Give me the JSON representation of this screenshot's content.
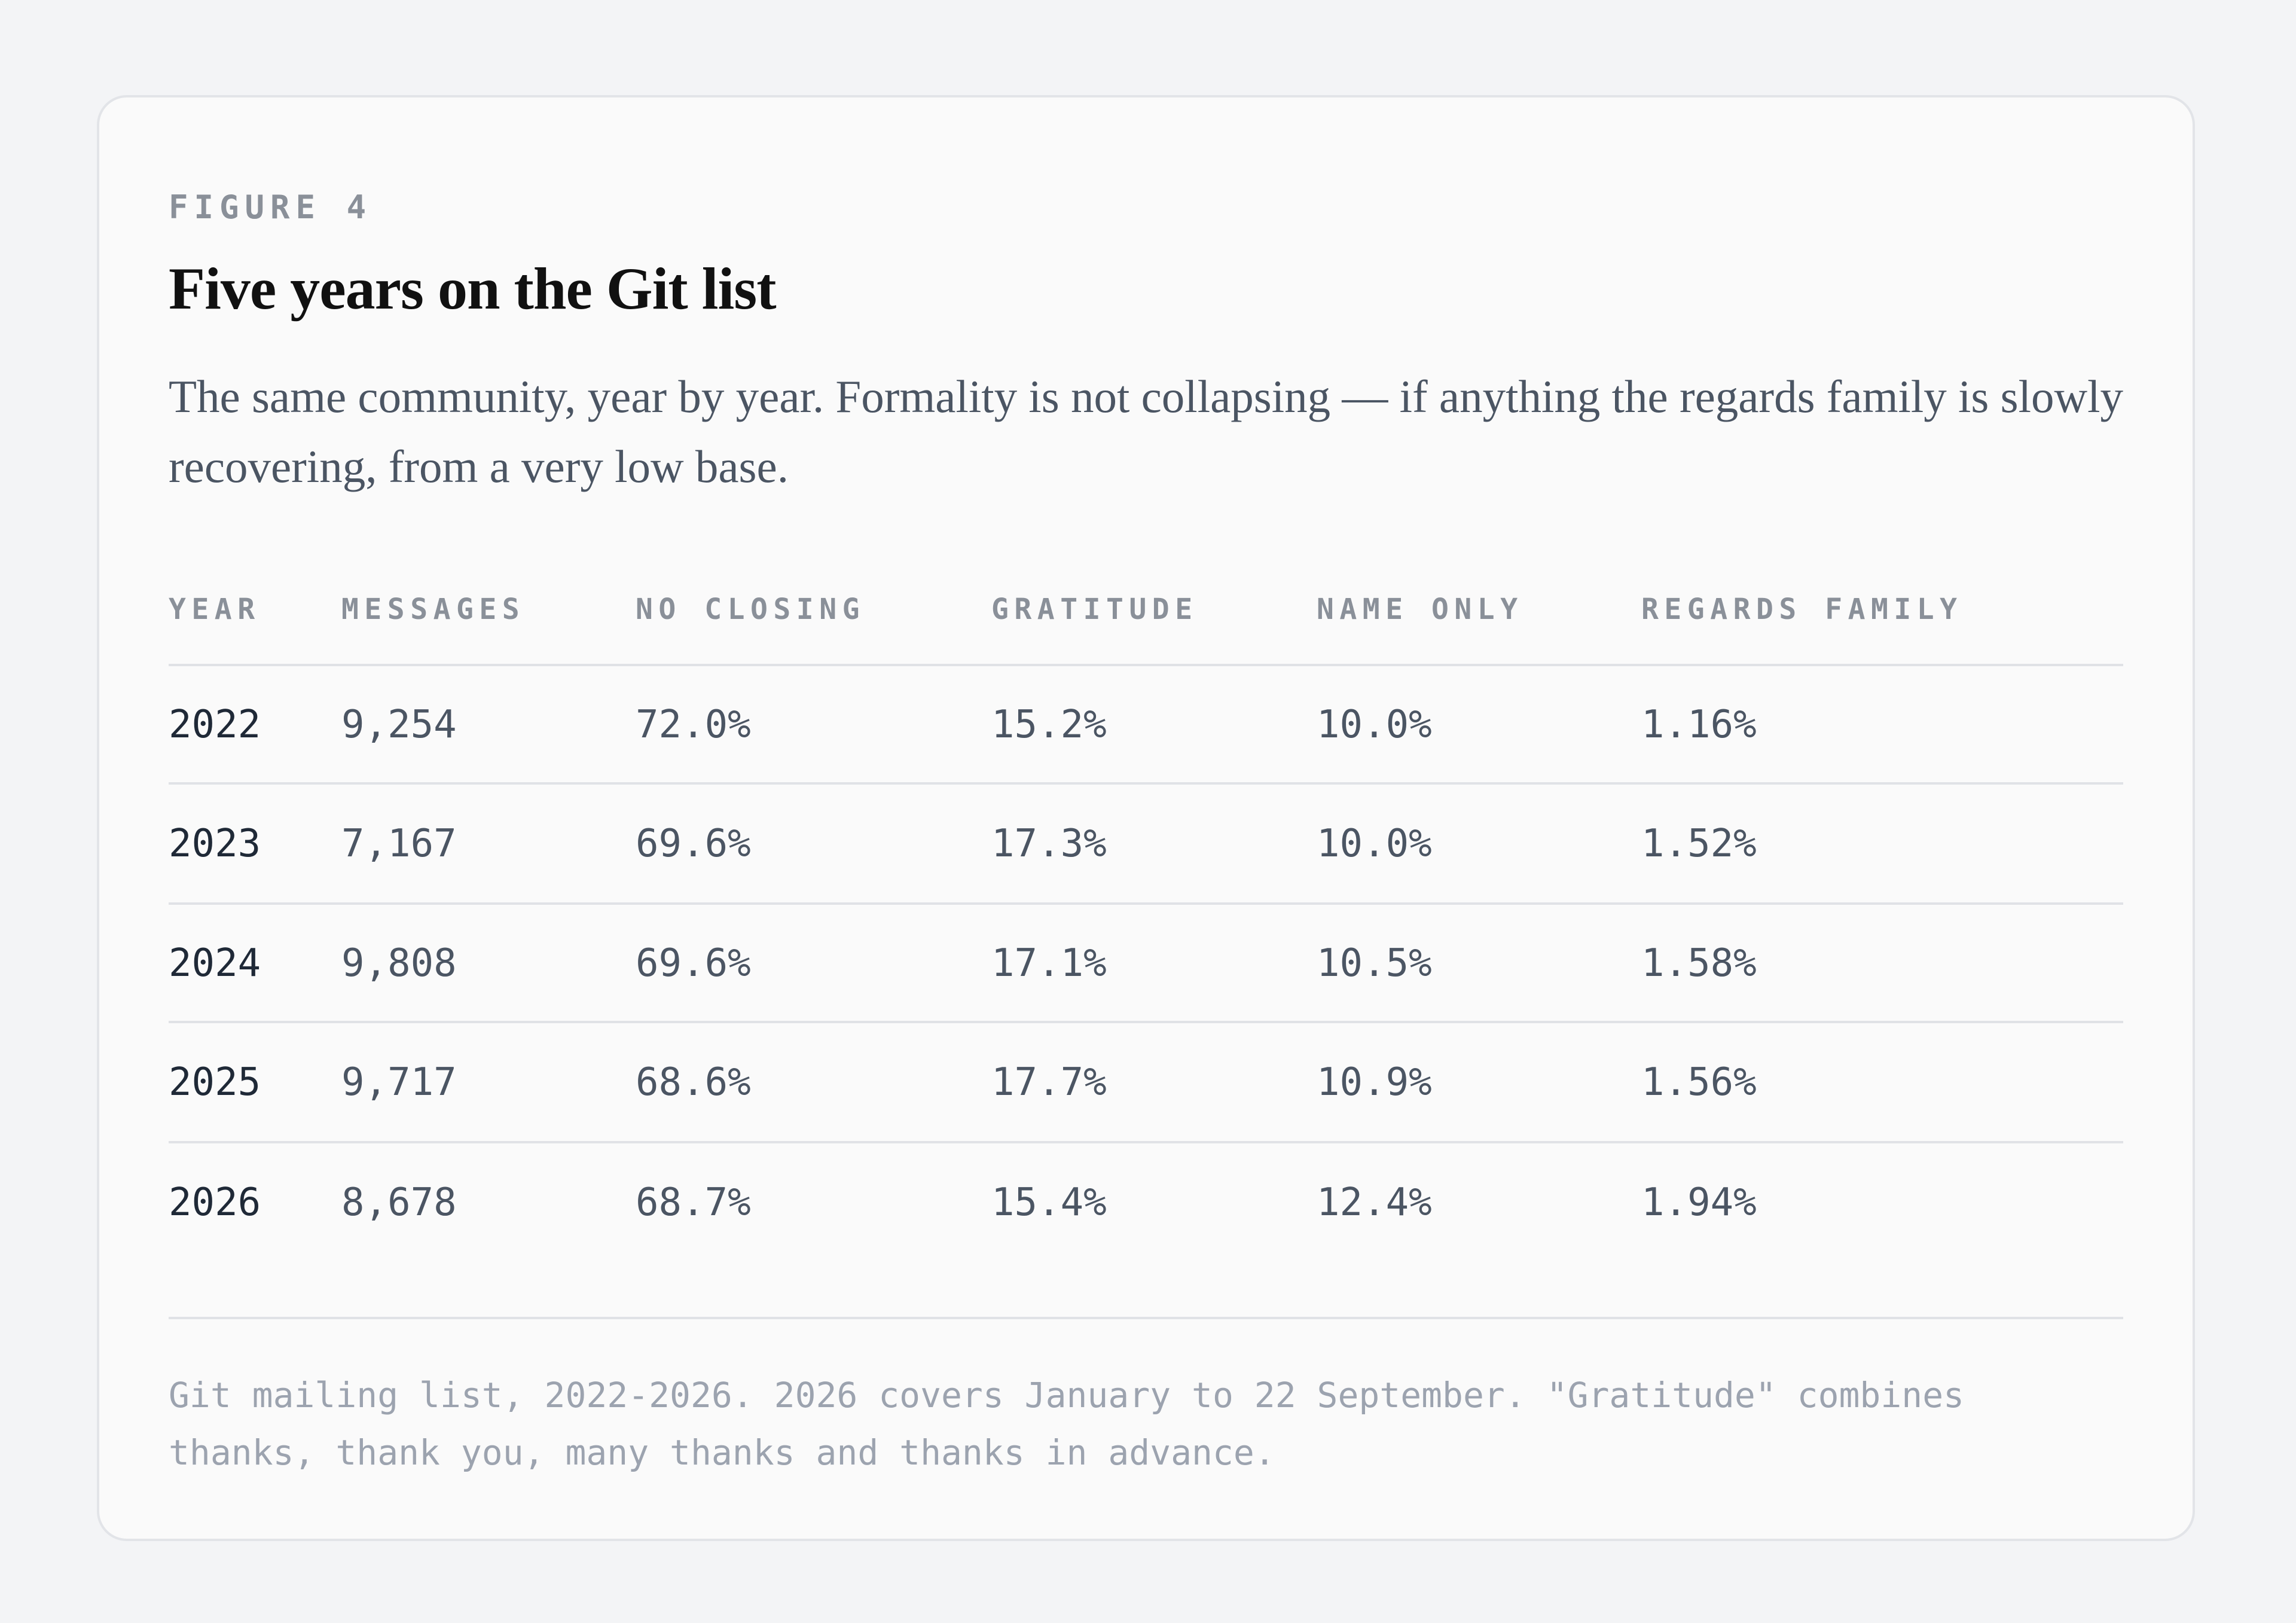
{
  "figure_label": "FIGURE 4",
  "title": "Five years on the Git list",
  "subtitle": "The same community, year by year. Formality is not collapsing — if anything the regards family is slowly recovering, from a very low base.",
  "table": {
    "headers": [
      "YEAR",
      "MESSAGES",
      "NO CLOSING",
      "GRATITUDE",
      "NAME ONLY",
      "REGARDS FAMILY"
    ],
    "rows": [
      [
        "2022",
        "9,254",
        "72.0%",
        "15.2%",
        "10.0%",
        "1.16%"
      ],
      [
        "2023",
        "7,167",
        "69.6%",
        "17.3%",
        "10.0%",
        "1.52%"
      ],
      [
        "2024",
        "9,808",
        "69.6%",
        "17.1%",
        "10.5%",
        "1.58%"
      ],
      [
        "2025",
        "9,717",
        "68.6%",
        "17.7%",
        "10.9%",
        "1.56%"
      ],
      [
        "2026",
        "8,678",
        "68.7%",
        "15.4%",
        "12.4%",
        "1.94%"
      ]
    ]
  },
  "footnote": "Git mailing list, 2022-2026. 2026 covers January to 22 September. \"Gratitude\" combines thanks, thank you, many thanks and thanks in advance."
}
